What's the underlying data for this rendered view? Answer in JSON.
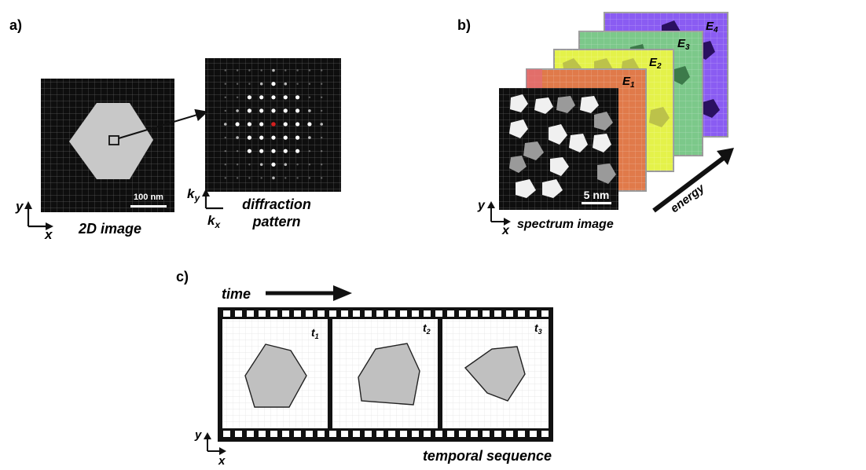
{
  "panels": {
    "a": {
      "label": "a)",
      "image_caption": "2D image",
      "scale_bar": "100 nm",
      "diffraction_caption_line1": "diffraction",
      "diffraction_caption_line2": "pattern",
      "axis_y": "y",
      "axis_x": "x",
      "k_y": "k",
      "k_y_sub": "y",
      "k_x": "k",
      "k_x_sub": "x"
    },
    "b": {
      "label": "b)",
      "image_caption": "spectrum image",
      "scale_bar": "5 nm",
      "energy_label": "energy",
      "axis_y": "y",
      "axis_x": "x",
      "layers": [
        {
          "name": "E",
          "sub": "4",
          "color": "#8a5cf2"
        },
        {
          "name": "E",
          "sub": "3",
          "color": "#7cc88a"
        },
        {
          "name": "E",
          "sub": "2",
          "color": "#e4f24a"
        },
        {
          "name": "E",
          "sub": "1",
          "color": "#e07a4a"
        }
      ]
    },
    "c": {
      "label": "c)",
      "time_label": "time",
      "caption": "temporal sequence",
      "axis_y": "y",
      "axis_x": "x",
      "frames": [
        {
          "name": "t",
          "sub": "1"
        },
        {
          "name": "t",
          "sub": "2"
        },
        {
          "name": "t",
          "sub": "3"
        }
      ]
    }
  },
  "colors": {
    "particle_gray": "#c8c8c8",
    "dark_bg": "#0e0e0e",
    "center_spot": "#d22020"
  }
}
